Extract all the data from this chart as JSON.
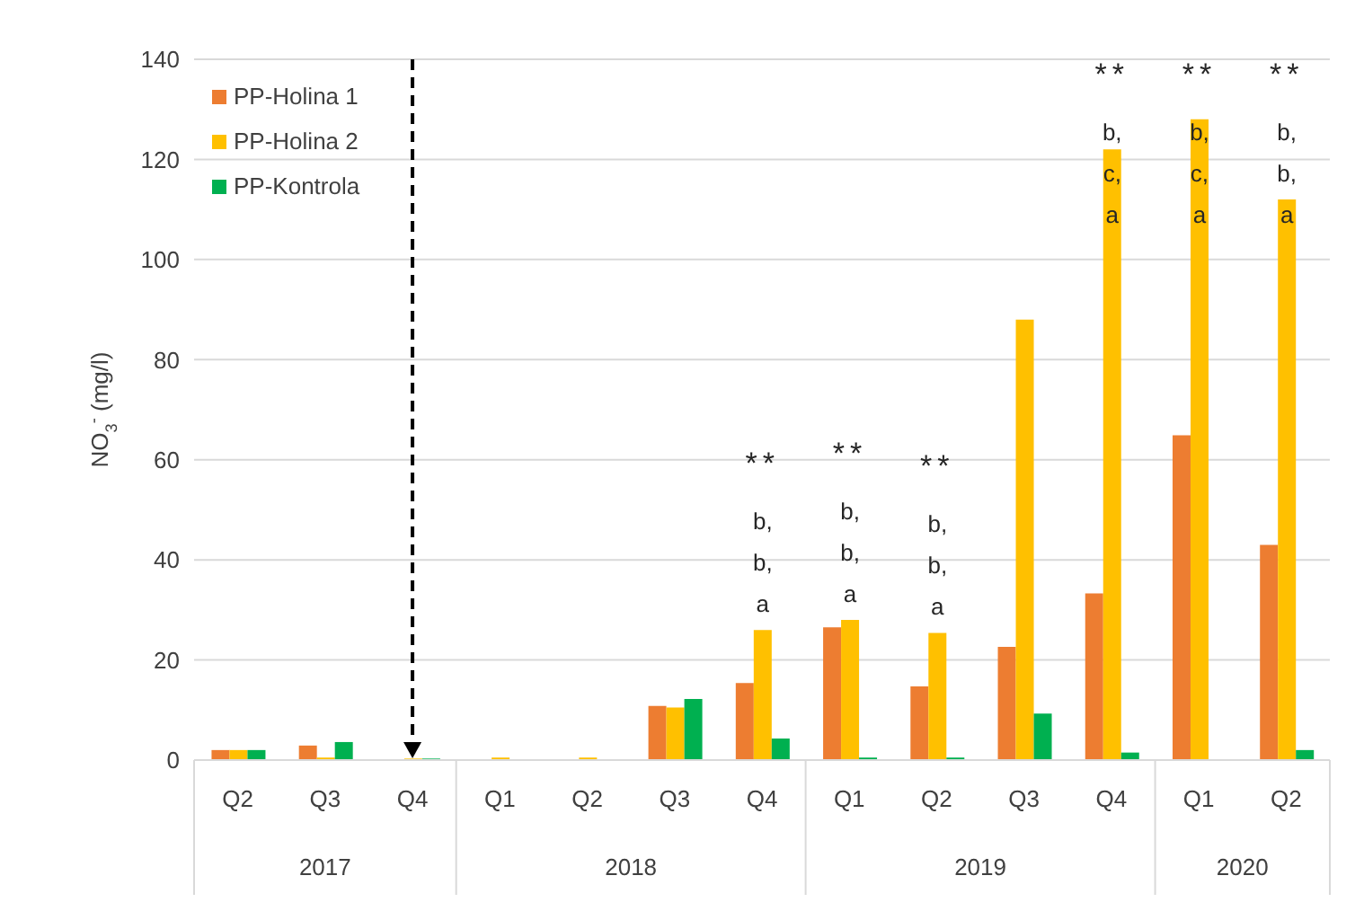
{
  "chart_data": {
    "type": "bar",
    "ylabel": "NO$_{3}$$^{-}$ (mg/l)",
    "categories": [
      "Q2",
      "Q3",
      "Q4",
      "Q1",
      "Q2",
      "Q3",
      "Q4",
      "Q1",
      "Q2",
      "Q3",
      "Q4",
      "Q1",
      "Q2"
    ],
    "annotations": [
      "2017",
      "2018",
      "2019",
      "2020"
    ],
    "series": [
      {
        "name": "PP-Holina 1",
        "color": "#ed7d31",
        "values": [
          2,
          2.9,
          0,
          0,
          0,
          10.8,
          15.4,
          26.5,
          14.7,
          22.6,
          33.3,
          64.9,
          43
        ]
      },
      {
        "name": "PP-Holina 2",
        "color": "#ffc000",
        "values": [
          2,
          0.5,
          0.3,
          0.5,
          0.5,
          10.5,
          26,
          28,
          25.4,
          88,
          122,
          128,
          112
        ],
        "value_labels": [
          null,
          null,
          null,
          null,
          null,
          null,
          "**\nb,\nb,\na",
          "**\nb,\nb,\na",
          "**\nb,\nb,\na",
          null,
          "**\nb,\nc,\na",
          "**\nb,\nc,\na",
          "**\nb,\nb,\na"
        ]
      },
      {
        "name": "PP-Kontrola",
        "color": "#00b050",
        "values": [
          2,
          3.6,
          0.3,
          0,
          0,
          12.2,
          4.3,
          0.5,
          0.5,
          9.3,
          1.5,
          0,
          2
        ]
      }
    ],
    "ylim": [
      0,
      140
    ],
    "yticks": [
      0,
      20,
      40,
      60,
      80,
      100,
      120,
      140
    ],
    "grid": "y",
    "legend": "top left",
    "ref_lines": [
      {
        "axis": "x",
        "value": "Q4",
        "line_style": "dashed",
        "color": "#000000"
      }
    ]
  }
}
